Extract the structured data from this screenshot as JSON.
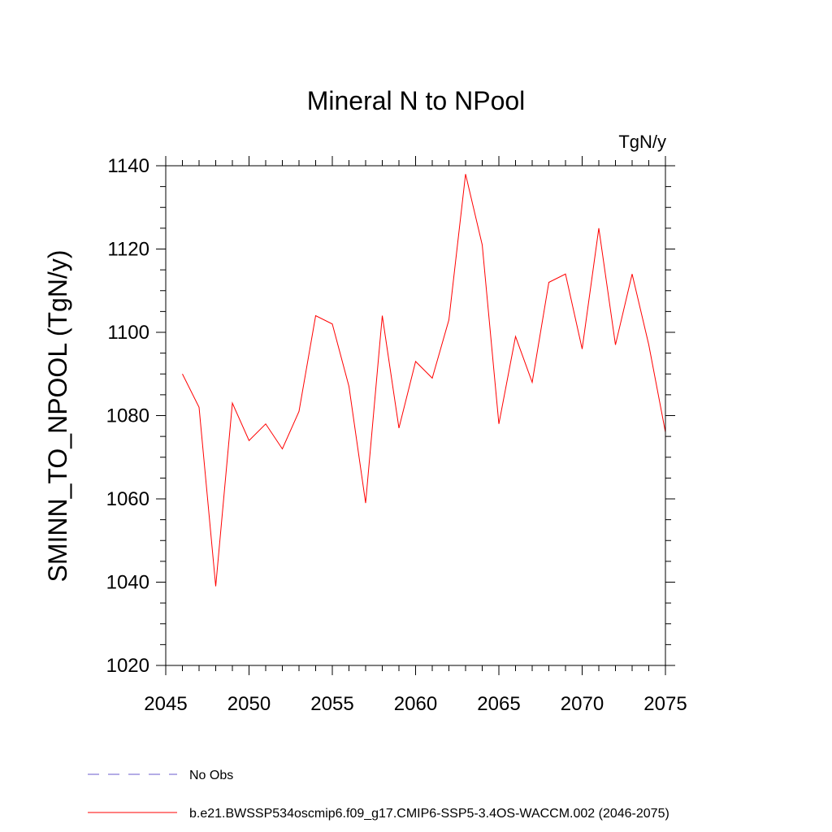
{
  "chart_data": {
    "type": "line",
    "title": "Mineral N to NPool",
    "units": "TgN/y",
    "ylabel": "SMINN_TO_NPOOL  (TgN/y)",
    "xlabel": "",
    "xlim": [
      2045,
      2075
    ],
    "ylim": [
      1020,
      1140
    ],
    "xticks": [
      2045,
      2050,
      2055,
      2060,
      2065,
      2070,
      2075
    ],
    "yticks": [
      1020,
      1040,
      1060,
      1080,
      1100,
      1120,
      1140
    ],
    "grid": false,
    "legend_position": "bottom-left",
    "series": [
      {
        "name": "b.e21.BWSSP534oscmip6.f09_g17.CMIP6-SSP5-3.4OS-WACCM.002 (2046-2075)",
        "color": "#ff0000",
        "style": "solid",
        "x": [
          2046,
          2047,
          2048,
          2049,
          2050,
          2051,
          2052,
          2053,
          2054,
          2055,
          2056,
          2057,
          2058,
          2059,
          2060,
          2061,
          2062,
          2063,
          2064,
          2065,
          2066,
          2067,
          2068,
          2069,
          2070,
          2071,
          2072,
          2073,
          2074,
          2075
        ],
        "y": [
          1090,
          1082,
          1039,
          1083,
          1074,
          1078,
          1072,
          1081,
          1104,
          1102,
          1087,
          1059,
          1104,
          1077,
          1093,
          1089,
          1103,
          1138,
          1121,
          1078,
          1099,
          1088,
          1112,
          1114,
          1096,
          1125,
          1097,
          1114,
          1097,
          1076
        ]
      }
    ],
    "legend": [
      {
        "label": "No Obs",
        "color": "#6a5acd",
        "style": "dashed"
      },
      {
        "label": "b.e21.BWSSP534oscmip6.f09_g17.CMIP6-SSP5-3.4OS-WACCM.002 (2046-2075)",
        "color": "#ff0000",
        "style": "solid"
      }
    ]
  }
}
